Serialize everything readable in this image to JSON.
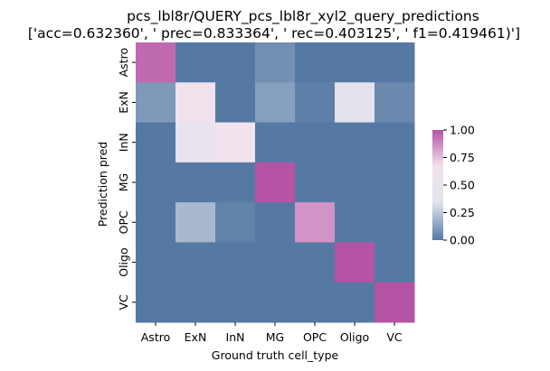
{
  "chart_data": {
    "type": "heatmap",
    "title": "pcs_lbl8r/QUERY_pcs_lbl8r_xyl2_query_predictions",
    "subtitle": "['acc=0.632360', '  prec=0.833364', ' rec=0.403125', ' f1=0.419461)']",
    "xlabel": "Ground truth cell_type",
    "ylabel": "Prediction pred",
    "x_categories": [
      "Astro",
      "ExN",
      "InN",
      "MG",
      "OPC",
      "Oligo",
      "VC"
    ],
    "y_categories": [
      "Astro",
      "ExN",
      "InN",
      "MG",
      "OPC",
      "Oligo",
      "VC"
    ],
    "values": [
      [
        0.95,
        0.0,
        0.0,
        0.07,
        0.0,
        0.0,
        0.0
      ],
      [
        0.1,
        0.62,
        0.0,
        0.12,
        0.02,
        0.38,
        0.05
      ],
      [
        0.0,
        0.5,
        0.65,
        0.0,
        0.0,
        0.0,
        0.0
      ],
      [
        0.0,
        0.0,
        0.0,
        1.0,
        0.0,
        0.0,
        0.0
      ],
      [
        0.0,
        0.2,
        0.03,
        0.0,
        0.85,
        0.0,
        0.0
      ],
      [
        0.0,
        0.0,
        0.0,
        0.0,
        0.0,
        1.0,
        0.0
      ],
      [
        0.0,
        0.0,
        0.0,
        0.0,
        0.0,
        0.0,
        1.0
      ]
    ],
    "colorbar": {
      "range": [
        0,
        1
      ],
      "ticks": [
        "0.00",
        "0.25",
        "0.50",
        "0.75",
        "1.00"
      ],
      "colors": [
        "#5679a4",
        "#dfe3ec",
        "#f3e3ee",
        "#b553a5"
      ]
    },
    "legend": "none",
    "grid": false
  }
}
